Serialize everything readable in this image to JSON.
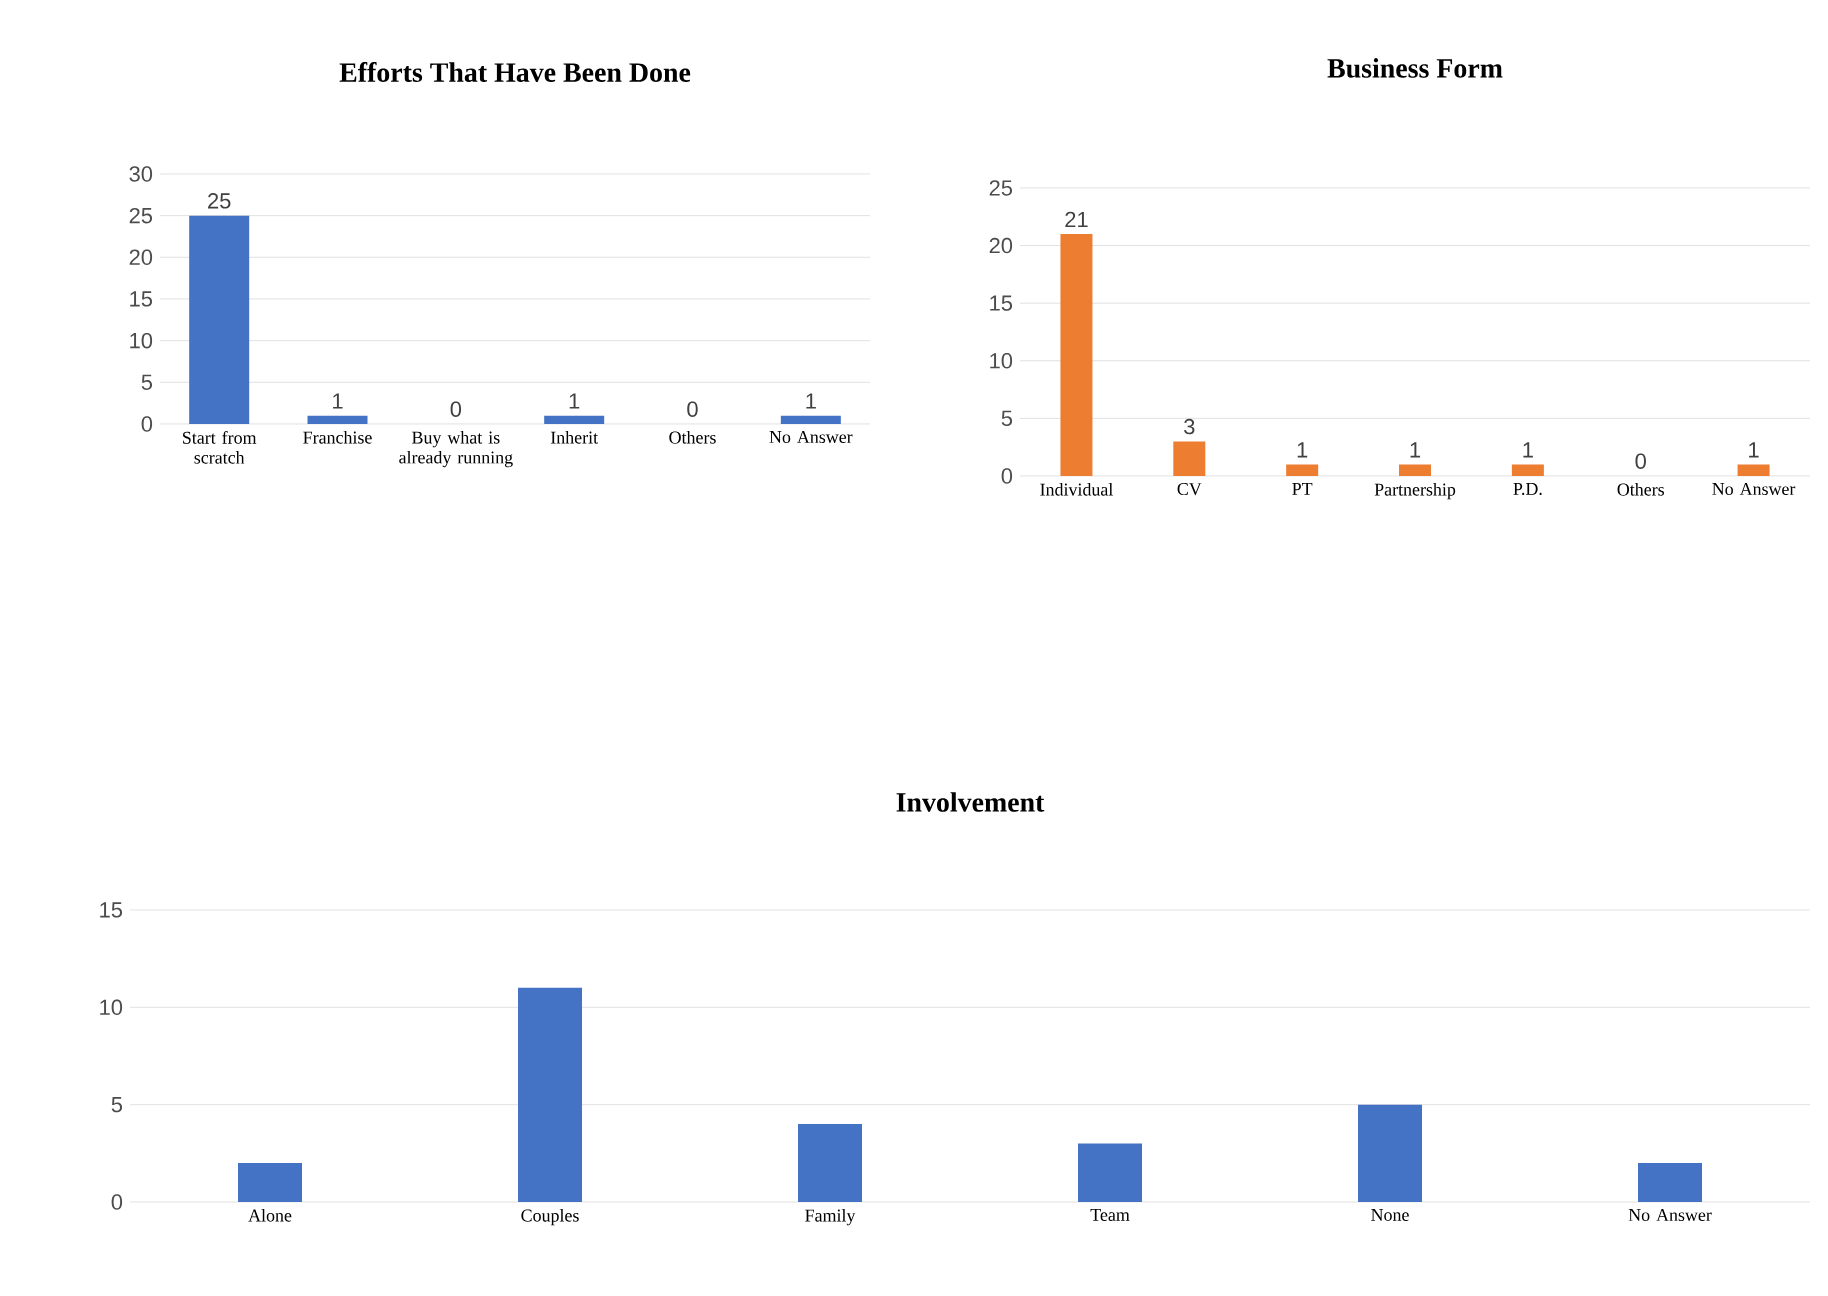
{
  "chart_data": [
    {
      "type": "bar",
      "title": "Efforts That Have Been Done",
      "categories": [
        "Start from scratch",
        "Franchise",
        "Buy what is already running",
        "Inherit",
        "Others",
        "No Answer"
      ],
      "values": [
        25,
        1,
        0,
        1,
        0,
        1
      ],
      "color": "#4472c4",
      "ylim": [
        0,
        30
      ],
      "yticks": [
        0,
        5,
        10,
        15,
        20,
        25,
        30
      ],
      "grid": "y",
      "data_labels": true
    },
    {
      "type": "bar",
      "title": "Business Form",
      "categories": [
        "Individual",
        "CV",
        "PT",
        "Partnership",
        "P.D.",
        "Others",
        "No Answer"
      ],
      "values": [
        21,
        3,
        1,
        1,
        1,
        0,
        1
      ],
      "color": "#ed7d31",
      "ylim": [
        0,
        25
      ],
      "yticks": [
        0,
        5,
        10,
        15,
        20,
        25
      ],
      "grid": "y",
      "data_labels": true
    },
    {
      "type": "bar",
      "title": "Involvement",
      "categories": [
        "Alone",
        "Couples",
        "Family",
        "Team",
        "None",
        "No Answer"
      ],
      "values": [
        2,
        11,
        4,
        3,
        5,
        2
      ],
      "color": "#4472c4",
      "ylim": [
        0,
        15
      ],
      "yticks": [
        0,
        5,
        10,
        15
      ],
      "grid": "y"
    }
  ]
}
